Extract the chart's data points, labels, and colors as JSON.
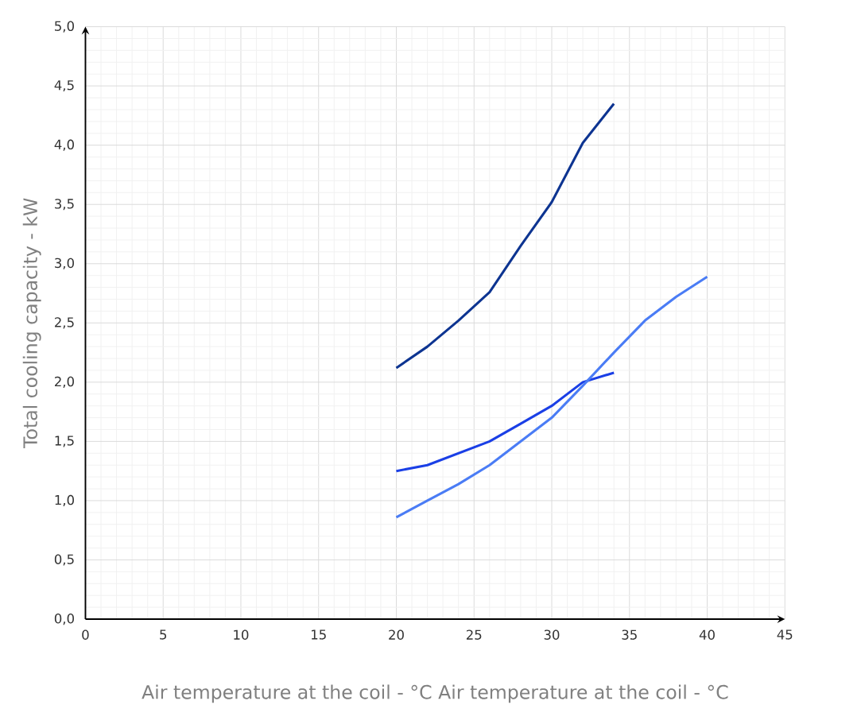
{
  "chart_data": {
    "type": "line",
    "xlabel": "Air temperature at the coil - °C Air temperature at the coil - °C",
    "ylabel": "Total cooling capacity - kW",
    "xlim": [
      0,
      45
    ],
    "ylim": [
      0,
      5
    ],
    "xticks": [
      0,
      5,
      10,
      15,
      20,
      25,
      30,
      35,
      40,
      45
    ],
    "yticks": [
      {
        "value": 0,
        "label": "0,0"
      },
      {
        "value": 0.5,
        "label": "0,5"
      },
      {
        "value": 1,
        "label": "1,0"
      },
      {
        "value": 1.5,
        "label": "1,5"
      },
      {
        "value": 2,
        "label": "2,0"
      },
      {
        "value": 2.5,
        "label": "2,5"
      },
      {
        "value": 3,
        "label": "3,0"
      },
      {
        "value": 3.5,
        "label": "3,5"
      },
      {
        "value": 4,
        "label": "4,0"
      },
      {
        "value": 4.5,
        "label": "4,5"
      },
      {
        "value": 5,
        "label": "5,0"
      }
    ],
    "grid": true,
    "marker": "none",
    "line_style": "solid",
    "series": [
      {
        "color": "#0d3491",
        "x": [
          20,
          22,
          24,
          26,
          28,
          30,
          32,
          34
        ],
        "values": [
          2.12,
          2.3,
          2.52,
          2.76,
          3.15,
          3.52,
          4.02,
          4.35
        ]
      },
      {
        "color": "#1a3fe6",
        "x": [
          20,
          22,
          24,
          26,
          28,
          30,
          32,
          34
        ],
        "values": [
          1.25,
          1.3,
          1.4,
          1.5,
          1.65,
          1.8,
          2.0,
          2.08
        ]
      },
      {
        "color": "#4a7cf5",
        "x": [
          20,
          22,
          24,
          26,
          28,
          30,
          32,
          34,
          36,
          38,
          40
        ],
        "values": [
          0.86,
          1.0,
          1.14,
          1.3,
          1.5,
          1.7,
          1.97,
          2.25,
          2.52,
          2.72,
          2.89
        ]
      }
    ]
  }
}
